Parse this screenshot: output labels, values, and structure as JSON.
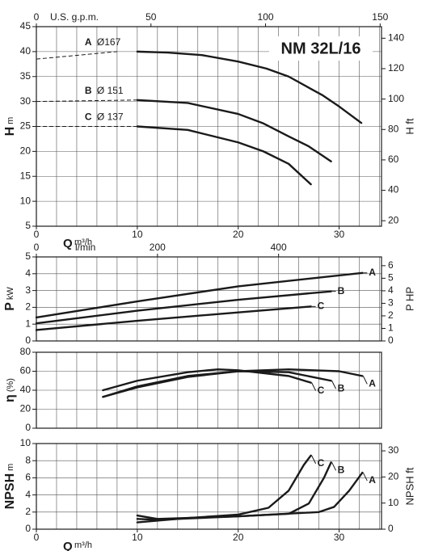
{
  "chart_data": [
    {
      "type": "line",
      "title": "NM 32L/16",
      "ylabel": "H",
      "yunit": "m",
      "y2label": "H ft",
      "xlabel": "Q",
      "xunit": "m³/h",
      "xlim": [
        0,
        34.2
      ],
      "xticks": [
        0,
        10,
        20,
        30
      ],
      "xgrid": [
        2,
        4,
        6,
        8,
        10,
        12,
        14,
        16,
        18,
        20,
        22,
        24,
        26,
        28,
        30,
        32,
        34
      ],
      "ylim": [
        5,
        45
      ],
      "yticks": [
        5,
        10,
        15,
        20,
        25,
        30,
        35,
        40,
        45
      ],
      "y2lim": [
        16.4,
        147.6
      ],
      "y2ticks": [
        20,
        40,
        60,
        80,
        100,
        120,
        140
      ],
      "top_axis": {
        "label": "U.S. g.p.m.",
        "xlim": [
          0,
          150.6
        ],
        "xticks": [
          0,
          50,
          100,
          150
        ]
      },
      "series": [
        {
          "name": "A",
          "label": "Ø167",
          "color": "#1a1a1a",
          "dashed_x": [
            0,
            8
          ],
          "dashed_values": [
            38.5,
            40
          ],
          "x": [
            10,
            13,
            16.4,
            20,
            22.8,
            25,
            28.4,
            30,
            32.2
          ],
          "values": [
            40,
            39.8,
            39.3,
            38,
            36.6,
            35,
            31.2,
            29,
            25.7
          ]
        },
        {
          "name": "B",
          "label": "Ø 151",
          "color": "#1a1a1a",
          "dashed_x": [
            0,
            10
          ],
          "dashed_values": [
            30,
            30.3
          ],
          "x": [
            10,
            15,
            20,
            22.5,
            25,
            27,
            29.2
          ],
          "values": [
            30.3,
            29.7,
            27.5,
            25.6,
            23,
            21,
            18
          ]
        },
        {
          "name": "C",
          "label": "Ø 137",
          "color": "#1a1a1a",
          "dashed_x": [
            0,
            10
          ],
          "dashed_values": [
            25,
            25
          ],
          "x": [
            10,
            15,
            20,
            22.5,
            25,
            27.2
          ],
          "values": [
            25,
            24.3,
            21.8,
            20,
            17.5,
            13.4
          ]
        }
      ]
    },
    {
      "type": "line",
      "ylabel": "P",
      "yunit": "kW",
      "y2label": "P HP",
      "xlim": [
        0,
        34.2
      ],
      "xgrid": [
        2,
        4,
        6,
        8,
        10,
        12,
        14,
        16,
        18,
        20,
        22,
        24,
        26,
        28,
        30,
        32,
        34
      ],
      "ylim": [
        0,
        5
      ],
      "yticks": [
        0,
        1,
        2,
        3,
        4,
        5
      ],
      "y2lim": [
        0,
        6.7
      ],
      "y2ticks": [
        0,
        1,
        2,
        3,
        4,
        5,
        6
      ],
      "top_axis": {
        "label": "l/min",
        "xlim": [
          0,
          570
        ],
        "xticks": [
          0,
          200,
          400
        ]
      },
      "series": [
        {
          "name": "A",
          "color": "#1a1a1a",
          "x": [
            0,
            10,
            20,
            32.3
          ],
          "values": [
            1.4,
            2.35,
            3.25,
            4.05
          ]
        },
        {
          "name": "B",
          "color": "#1a1a1a",
          "x": [
            0,
            10,
            20,
            29.2
          ],
          "values": [
            1.05,
            1.8,
            2.45,
            2.95
          ]
        },
        {
          "name": "C",
          "color": "#1a1a1a",
          "x": [
            0,
            10,
            20,
            27.2
          ],
          "values": [
            0.65,
            1.2,
            1.7,
            2.05
          ]
        }
      ]
    },
    {
      "type": "line",
      "ylabel": "η",
      "yunit": "(%)",
      "xlim": [
        0,
        34.2
      ],
      "xgrid": [
        2,
        4,
        6,
        8,
        10,
        12,
        14,
        16,
        18,
        20,
        22,
        24,
        26,
        28,
        30,
        32,
        34
      ],
      "ylim": [
        0,
        80
      ],
      "yticks": [
        0,
        20,
        40,
        60,
        80
      ],
      "series": [
        {
          "name": "A",
          "color": "#1a1a1a",
          "x": [
            6.6,
            10,
            15,
            20,
            25,
            30,
            32.3
          ],
          "values": [
            33,
            43,
            54,
            60,
            62,
            60,
            55
          ]
        },
        {
          "name": "B",
          "color": "#1a1a1a",
          "x": [
            6.6,
            10,
            15,
            20,
            25,
            29.2
          ],
          "values": [
            33,
            44,
            55,
            60,
            59,
            50
          ]
        },
        {
          "name": "C",
          "color": "#1a1a1a",
          "x": [
            6.6,
            10,
            15,
            18,
            20,
            25,
            27.2
          ],
          "values": [
            40,
            50,
            59,
            62,
            61,
            55,
            48
          ]
        }
      ]
    },
    {
      "type": "line",
      "ylabel": "NPSH",
      "yunit": "m",
      "y2label": "NPSH ft",
      "xlabel": "Q",
      "xunit": "m³/h",
      "xlim": [
        0,
        34.2
      ],
      "xticks": [
        0,
        10,
        20,
        30
      ],
      "xgrid": [
        2,
        4,
        6,
        8,
        10,
        12,
        14,
        16,
        18,
        20,
        22,
        24,
        26,
        28,
        30,
        32,
        34
      ],
      "ylim": [
        0,
        10
      ],
      "yticks": [
        0,
        2,
        4,
        6,
        8,
        10
      ],
      "y2lim": [
        0,
        32.8
      ],
      "y2ticks": [
        0,
        10,
        20,
        30
      ],
      "series": [
        {
          "name": "A",
          "color": "#1a1a1a",
          "x": [
            10,
            12,
            20,
            28,
            29.5,
            31,
            32.3
          ],
          "values": [
            1.6,
            1.2,
            1.5,
            2,
            2.6,
            4.5,
            6.6
          ]
        },
        {
          "name": "B",
          "color": "#1a1a1a",
          "x": [
            10,
            12,
            20,
            25,
            27,
            28.5,
            29.2
          ],
          "values": [
            1.2,
            1.1,
            1.5,
            1.8,
            3,
            6,
            7.8
          ]
        },
        {
          "name": "C",
          "color": "#1a1a1a",
          "x": [
            10,
            15,
            20,
            23,
            25,
            26.5,
            27.2
          ],
          "values": [
            0.8,
            1.3,
            1.7,
            2.5,
            4.5,
            7.5,
            8.6
          ]
        }
      ]
    }
  ]
}
